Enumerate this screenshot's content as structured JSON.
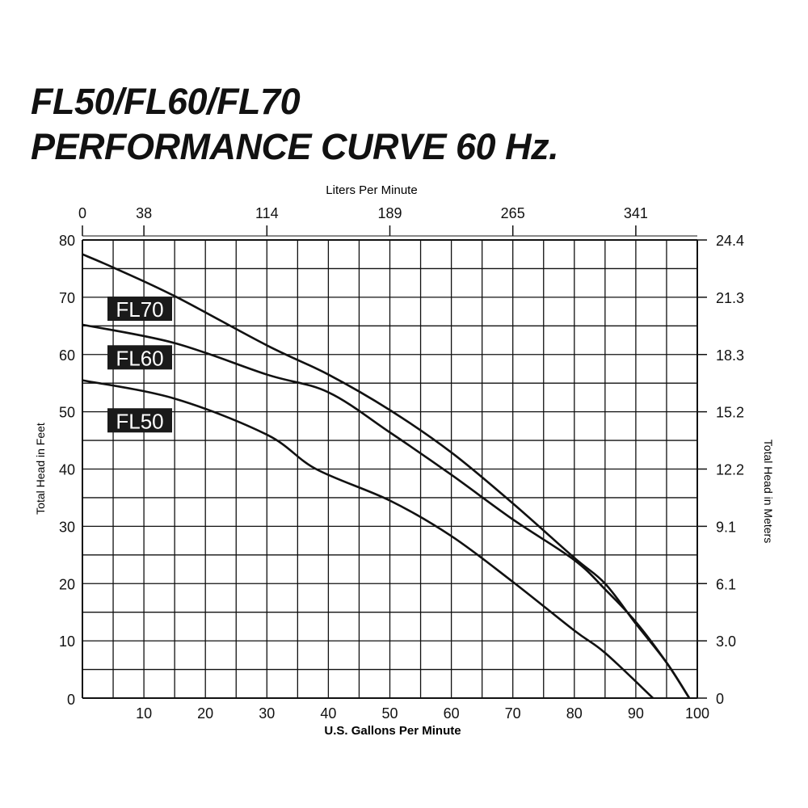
{
  "title_line1": "FL50/FL60/FL70",
  "title_line2": "PERFORMANCE CURVE 60 Hz.",
  "chart_data": {
    "type": "line",
    "xlabel": "U.S. Gallons Per Minute",
    "ylabel": "Total Head in Feet",
    "x2label": "Liters Per Minute",
    "y2label": "Total Head in Meters",
    "xlim": [
      0,
      100
    ],
    "ylim": [
      0,
      80
    ],
    "grid": true,
    "x_ticks": [
      10,
      20,
      30,
      40,
      50,
      60,
      70,
      80,
      90,
      100
    ],
    "y_ticks": [
      0,
      10,
      20,
      30,
      40,
      50,
      60,
      70,
      80
    ],
    "x2_ticks": [
      {
        "gpm": 0,
        "label": "0"
      },
      {
        "gpm": 10,
        "label": "38"
      },
      {
        "gpm": 30,
        "label": "114"
      },
      {
        "gpm": 50,
        "label": "189"
      },
      {
        "gpm": 70,
        "label": "265"
      },
      {
        "gpm": 90,
        "label": "341"
      }
    ],
    "y2_ticks": [
      {
        "ft": 0,
        "label": "0"
      },
      {
        "ft": 10,
        "label": "3.0"
      },
      {
        "ft": 20,
        "label": "6.1"
      },
      {
        "ft": 30,
        "label": "9.1"
      },
      {
        "ft": 40,
        "label": "12.2"
      },
      {
        "ft": 50,
        "label": "15.2"
      },
      {
        "ft": 60,
        "label": "18.3"
      },
      {
        "ft": 70,
        "label": "21.3"
      },
      {
        "ft": 80,
        "label": "24.4"
      }
    ],
    "series": [
      {
        "name": "FL70",
        "x": [
          0,
          5,
          15,
          30,
          40,
          50,
          60,
          70,
          80,
          85,
          90,
          95,
          98.7
        ],
        "y": [
          77.5,
          75.2,
          70.2,
          61.6,
          56.5,
          50.3,
          42.9,
          34,
          24.5,
          20,
          13,
          6.2,
          0
        ]
      },
      {
        "name": "FL60",
        "x": [
          0,
          15,
          30,
          40,
          50,
          60,
          70,
          80,
          85,
          90,
          95,
          98.7
        ],
        "y": [
          65.2,
          62,
          56.5,
          53.4,
          46.4,
          39,
          31.2,
          24.1,
          19,
          13.3,
          6.2,
          0
        ]
      },
      {
        "name": "FL50",
        "x": [
          0,
          15,
          30,
          38,
          50,
          60,
          70,
          80,
          85,
          92.8
        ],
        "y": [
          55.5,
          52.3,
          46,
          40,
          34.5,
          28.3,
          20.3,
          11.8,
          7.9,
          0
        ]
      }
    ],
    "series_labels": [
      {
        "name": "FL70",
        "at_y": 68
      },
      {
        "name": "FL60",
        "at_y": 59.5
      },
      {
        "name": "FL50",
        "at_y": 48.5
      }
    ]
  }
}
